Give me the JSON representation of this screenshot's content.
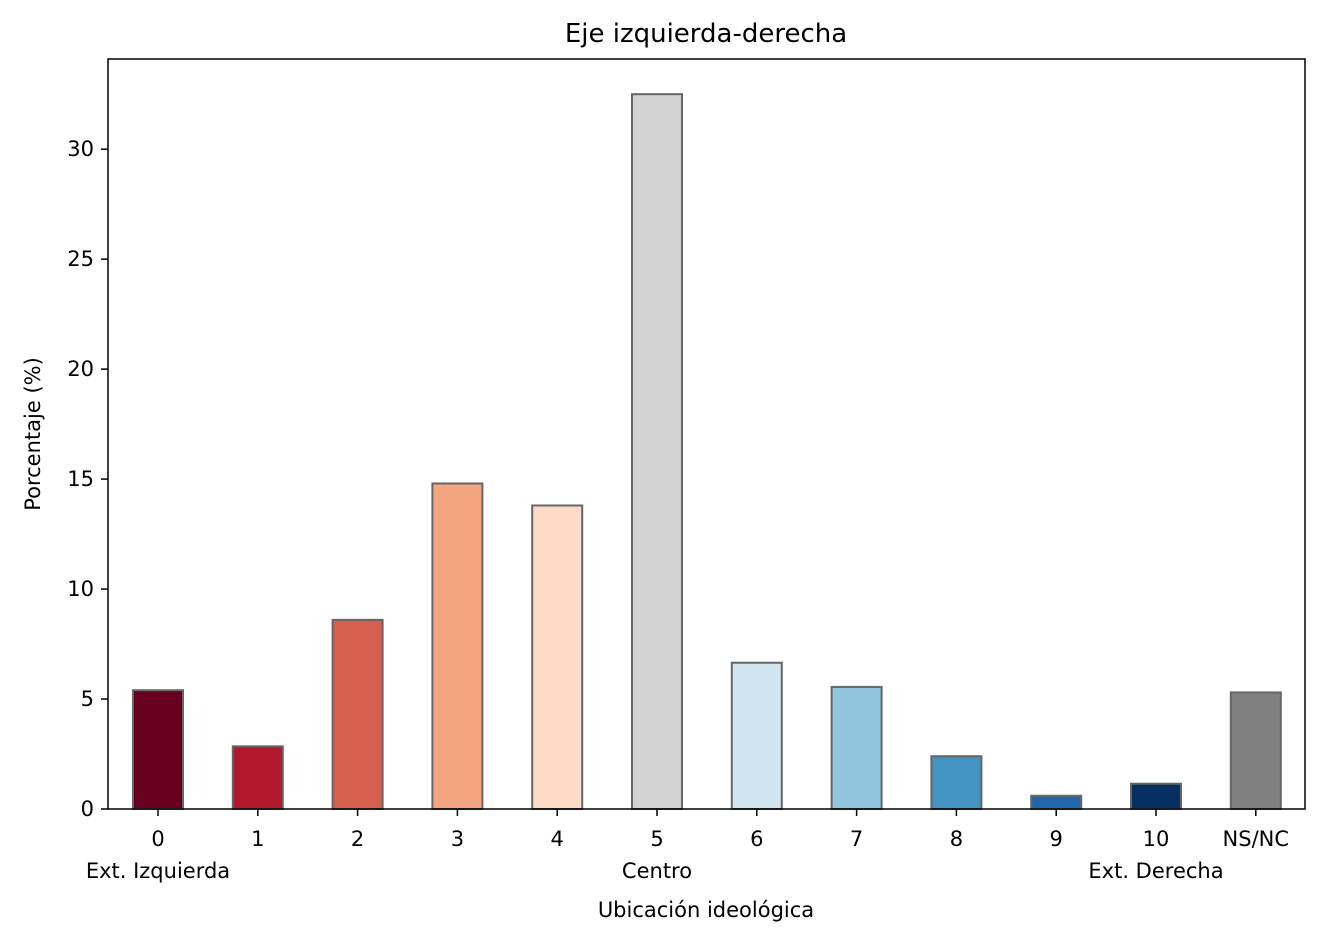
{
  "chart_data": {
    "type": "bar",
    "title": "Eje izquierda-derecha",
    "xlabel": "Ubicación ideológica",
    "ylabel": "Porcentaje (%)",
    "categories": [
      "0",
      "1",
      "2",
      "3",
      "4",
      "5",
      "6",
      "7",
      "8",
      "9",
      "10",
      "NS/NC"
    ],
    "values": [
      5.4,
      2.85,
      8.6,
      14.8,
      13.8,
      32.5,
      6.65,
      5.55,
      2.4,
      0.6,
      1.15,
      5.3
    ],
    "colors": [
      "#67001f",
      "#b2182b",
      "#d6604d",
      "#f4a582",
      "#fddbc7",
      "#d3d3d3",
      "#d1e5f0",
      "#92c5de",
      "#4393c3",
      "#2166ac",
      "#053061",
      "#808080"
    ],
    "edge_color": "#666666",
    "yticks": [
      0,
      5,
      10,
      15,
      20,
      25,
      30
    ],
    "ylim": [
      0,
      34.1
    ],
    "grid": false,
    "secondary_labels": [
      {
        "category": "0",
        "text": "Ext. Izquierda"
      },
      {
        "category": "5",
        "text": "Centro"
      },
      {
        "category": "10",
        "text": "Ext. Derecha"
      }
    ]
  }
}
